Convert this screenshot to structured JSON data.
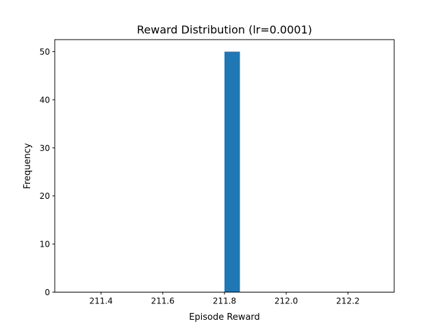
{
  "chart_data": {
    "type": "bar",
    "subtype": "histogram",
    "title": "Reward Distribution (lr=0.0001)",
    "xlabel": "Episode Reward",
    "ylabel": "Frequency",
    "xlim": [
      211.25,
      212.35
    ],
    "ylim": [
      0,
      52.5
    ],
    "xticks": [
      {
        "value": 211.4,
        "label": "211.4"
      },
      {
        "value": 211.6,
        "label": "211.6"
      },
      {
        "value": 211.8,
        "label": "211.8"
      },
      {
        "value": 212.0,
        "label": "212.0"
      },
      {
        "value": 212.2,
        "label": "212.2"
      }
    ],
    "yticks": [
      {
        "value": 0,
        "label": "0"
      },
      {
        "value": 10,
        "label": "10"
      },
      {
        "value": 20,
        "label": "20"
      },
      {
        "value": 30,
        "label": "30"
      },
      {
        "value": 40,
        "label": "40"
      },
      {
        "value": 50,
        "label": "50"
      }
    ],
    "bins": [
      {
        "x0": 211.8,
        "x1": 211.85,
        "count": 50
      }
    ],
    "color": "#1f77b4",
    "grid": false,
    "legend": false
  }
}
